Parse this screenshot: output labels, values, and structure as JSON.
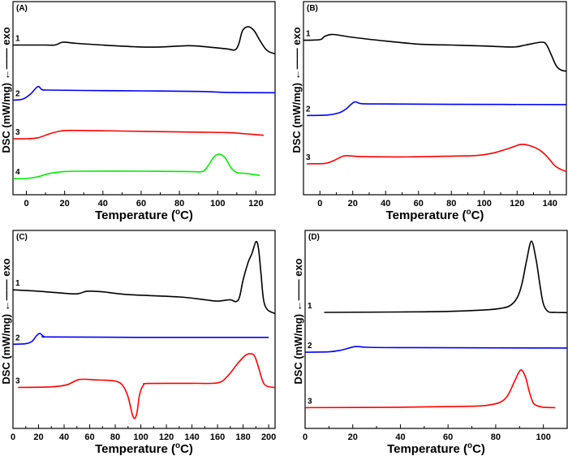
{
  "chart_data": [
    {
      "type": "line",
      "panel_label": "(A)",
      "xlabel": "Temperature (",
      "xlabel_unit": "o",
      "xlabel_end": "C)",
      "ylabel": "DSC (mW/mg)",
      "ylabel_arrow": "←——",
      "ylabel_exo": "exo",
      "xlim": [
        -7,
        130
      ],
      "ylim": [
        0,
        100
      ],
      "xticks": [
        0,
        20,
        40,
        60,
        80,
        100,
        120
      ],
      "grid": false,
      "series": [
        {
          "name": "1",
          "color": "#000000",
          "points": [
            [
              -7,
              77.5
            ],
            [
              10,
              77.5
            ],
            [
              15,
              77.5
            ],
            [
              19,
              79
            ],
            [
              25,
              78.5
            ],
            [
              40,
              77.5
            ],
            [
              60,
              76.5
            ],
            [
              70,
              76.5
            ],
            [
              85,
              77.2
            ],
            [
              95,
              76.5
            ],
            [
              105,
              75.5
            ],
            [
              109,
              75
            ],
            [
              111,
              78
            ],
            [
              113,
              85
            ],
            [
              116,
              87
            ],
            [
              119,
              85
            ],
            [
              122,
              80
            ],
            [
              125,
              75.5
            ],
            [
              127,
              74
            ],
            [
              130,
              73
            ]
          ]
        },
        {
          "name": "2",
          "color": "#0000ff",
          "points": [
            [
              -7,
              49
            ],
            [
              -2,
              49.5
            ],
            [
              2,
              52
            ],
            [
              6,
              56
            ],
            [
              8,
              54.5
            ],
            [
              11,
              54.2
            ],
            [
              30,
              54
            ],
            [
              60,
              53.8
            ],
            [
              90,
              53.5
            ],
            [
              105,
              53
            ],
            [
              130,
              52.8
            ]
          ]
        },
        {
          "name": "3",
          "color": "#ff0000",
          "points": [
            [
              -7,
              29
            ],
            [
              0,
              29
            ],
            [
              6,
              29.5
            ],
            [
              12,
              31.5
            ],
            [
              18,
              33
            ],
            [
              25,
              33.3
            ],
            [
              50,
              33
            ],
            [
              80,
              32.5
            ],
            [
              105,
              32.2
            ],
            [
              115,
              31.5
            ],
            [
              124,
              30.8
            ]
          ]
        },
        {
          "name": "4",
          "color": "#00ee00",
          "points": [
            [
              -7,
              8.3
            ],
            [
              0,
              8.4
            ],
            [
              6,
              9.3
            ],
            [
              12,
              11
            ],
            [
              20,
              12
            ],
            [
              30,
              12.2
            ],
            [
              60,
              12.2
            ],
            [
              85,
              12
            ],
            [
              92,
              12
            ],
            [
              95,
              15
            ],
            [
              98,
              19.5
            ],
            [
              101,
              21
            ],
            [
              104,
              19
            ],
            [
              107,
              14
            ],
            [
              110,
              11.5
            ],
            [
              115,
              11
            ],
            [
              122,
              10
            ]
          ]
        }
      ]
    },
    {
      "type": "line",
      "panel_label": "(B)",
      "xlabel": "Temperature (",
      "xlabel_unit": "o",
      "xlabel_end": "C)",
      "ylabel": "DSC (mW/mg)",
      "ylabel_arrow": "←——",
      "ylabel_exo": "exo",
      "xlim": [
        -10,
        150
      ],
      "ylim": [
        0,
        100
      ],
      "xticks": [
        0,
        20,
        40,
        60,
        80,
        100,
        120,
        140
      ],
      "grid": false,
      "series": [
        {
          "name": "1",
          "color": "#000000",
          "points": [
            [
              -10,
              80
            ],
            [
              0,
              80.3
            ],
            [
              3,
              82
            ],
            [
              8,
              83
            ],
            [
              20,
              81.5
            ],
            [
              40,
              79.6
            ],
            [
              60,
              78
            ],
            [
              80,
              77.5
            ],
            [
              100,
              77
            ],
            [
              118,
              76.5
            ],
            [
              125,
              77.5
            ],
            [
              135,
              79
            ],
            [
              138,
              77.5
            ],
            [
              141,
              72
            ],
            [
              144,
              66.5
            ],
            [
              147,
              64.5
            ],
            [
              150,
              64
            ]
          ]
        },
        {
          "name": "2",
          "color": "#0000ff",
          "points": [
            [
              -8,
              41
            ],
            [
              5,
              41.3
            ],
            [
              12,
              42.5
            ],
            [
              16,
              44.5
            ],
            [
              21,
              48
            ],
            [
              25,
              47.2
            ],
            [
              35,
              47
            ],
            [
              80,
              46.8
            ],
            [
              150,
              46.7
            ]
          ]
        },
        {
          "name": "3",
          "color": "#ff0000",
          "points": [
            [
              -8,
              16
            ],
            [
              3,
              16.2
            ],
            [
              8,
              17.5
            ],
            [
              13,
              19.6
            ],
            [
              16,
              20.2
            ],
            [
              25,
              19.8
            ],
            [
              50,
              19.6
            ],
            [
              80,
              20
            ],
            [
              95,
              20.3
            ],
            [
              105,
              21.5
            ],
            [
              115,
              24
            ],
            [
              122,
              26
            ],
            [
              127,
              25.6
            ],
            [
              133,
              23.5
            ],
            [
              138,
              20
            ],
            [
              143,
              15
            ],
            [
              147,
              13
            ],
            [
              150,
              12
            ]
          ]
        }
      ]
    },
    {
      "type": "line",
      "panel_label": "(C)",
      "xlabel": "Temperature (",
      "xlabel_unit": "o",
      "xlabel_end": "C)",
      "ylabel": "DSC (mW/mg)",
      "ylabel_arrow": "←——",
      "ylabel_exo": "exo",
      "xlim": [
        0,
        205
      ],
      "ylim": [
        0,
        100
      ],
      "xticks": [
        0,
        20,
        40,
        60,
        80,
        100,
        120,
        140,
        160,
        180,
        200
      ],
      "grid": false,
      "series": [
        {
          "name": "1",
          "color": "#000000",
          "points": [
            [
              0,
              70
            ],
            [
              20,
              69.3
            ],
            [
              45,
              68
            ],
            [
              52,
              68.2
            ],
            [
              58,
              69.3
            ],
            [
              70,
              69
            ],
            [
              90,
              67.6
            ],
            [
              130,
              66.4
            ],
            [
              150,
              65
            ],
            [
              160,
              64.3
            ],
            [
              170,
              65
            ],
            [
              174,
              64
            ],
            [
              177,
              66
            ],
            [
              180,
              75
            ],
            [
              184,
              84
            ],
            [
              187,
              88.5
            ],
            [
              190,
              94.3
            ],
            [
              192,
              91
            ],
            [
              194,
              78
            ],
            [
              196,
              65
            ],
            [
              199,
              60
            ],
            [
              205,
              58
            ]
          ]
        },
        {
          "name": "2",
          "color": "#0000ff",
          "points": [
            [
              0,
              42.5
            ],
            [
              10,
              42.8
            ],
            [
              15,
              44
            ],
            [
              18,
              46.5
            ],
            [
              21,
              48
            ],
            [
              24,
              46.5
            ],
            [
              30,
              46.2
            ],
            [
              100,
              46
            ],
            [
              200,
              46
            ]
          ]
        },
        {
          "name": "3",
          "color": "#ff0000",
          "points": [
            [
              4,
              20.7
            ],
            [
              30,
              21
            ],
            [
              42,
              22
            ],
            [
              52,
              24.7
            ],
            [
              65,
              24.5
            ],
            [
              80,
              23.9
            ],
            [
              86,
              21.5
            ],
            [
              90,
              16
            ],
            [
              93,
              8
            ],
            [
              95,
              5
            ],
            [
              97,
              8
            ],
            [
              99,
              17
            ],
            [
              102,
              21.8
            ],
            [
              106,
              22.7
            ],
            [
              140,
              22.8
            ],
            [
              160,
              23
            ],
            [
              168,
              26.5
            ],
            [
              176,
              33
            ],
            [
              182,
              37
            ],
            [
              186,
              37.7
            ],
            [
              189,
              36.5
            ],
            [
              192,
              31
            ],
            [
              195,
              24.5
            ],
            [
              198,
              21.5
            ],
            [
              205,
              20.6
            ]
          ]
        }
      ]
    },
    {
      "type": "line",
      "panel_label": "(D)",
      "xlabel": "Temperature (",
      "xlabel_unit": "o",
      "xlabel_end": "C)",
      "ylabel": "DSC (mW/mg)",
      "ylabel_arrow": "←——",
      "ylabel_exo": "exo",
      "xlim": [
        0,
        110
      ],
      "ylim": [
        0,
        100
      ],
      "xticks": [
        0,
        20,
        40,
        60,
        80,
        100
      ],
      "grid": false,
      "series": [
        {
          "name": "1",
          "color": "#000000",
          "points": [
            [
              8,
              58.6
            ],
            [
              40,
              58.8
            ],
            [
              60,
              59.1
            ],
            [
              75,
              59.8
            ],
            [
              82,
              60.6
            ],
            [
              86,
              62
            ],
            [
              89,
              66
            ],
            [
              91,
              73
            ],
            [
              93,
              85
            ],
            [
              95,
              94.6
            ],
            [
              97,
              85
            ],
            [
              98.5,
              73
            ],
            [
              100,
              63
            ],
            [
              102,
              59
            ],
            [
              105,
              58.6
            ],
            [
              110,
              58.5
            ]
          ]
        },
        {
          "name": "2",
          "color": "#0000ff",
          "points": [
            [
              0,
              38.5
            ],
            [
              10,
              38.7
            ],
            [
              15,
              39.5
            ],
            [
              21,
              41.3
            ],
            [
              26,
              41
            ],
            [
              40,
              40.8
            ],
            [
              110,
              40.6
            ]
          ]
        },
        {
          "name": "3",
          "color": "#ff0000",
          "points": [
            [
              0,
              10.5
            ],
            [
              40,
              10.7
            ],
            [
              70,
              11.2
            ],
            [
              78,
              12
            ],
            [
              82,
              13.3
            ],
            [
              85,
              16.5
            ],
            [
              88,
              24
            ],
            [
              90.5,
              29.5
            ],
            [
              92.5,
              26
            ],
            [
              94,
              19
            ],
            [
              95.5,
              13.5
            ],
            [
              97,
              11.7
            ],
            [
              100,
              10.7
            ],
            [
              105,
              10.5
            ]
          ]
        }
      ]
    }
  ]
}
